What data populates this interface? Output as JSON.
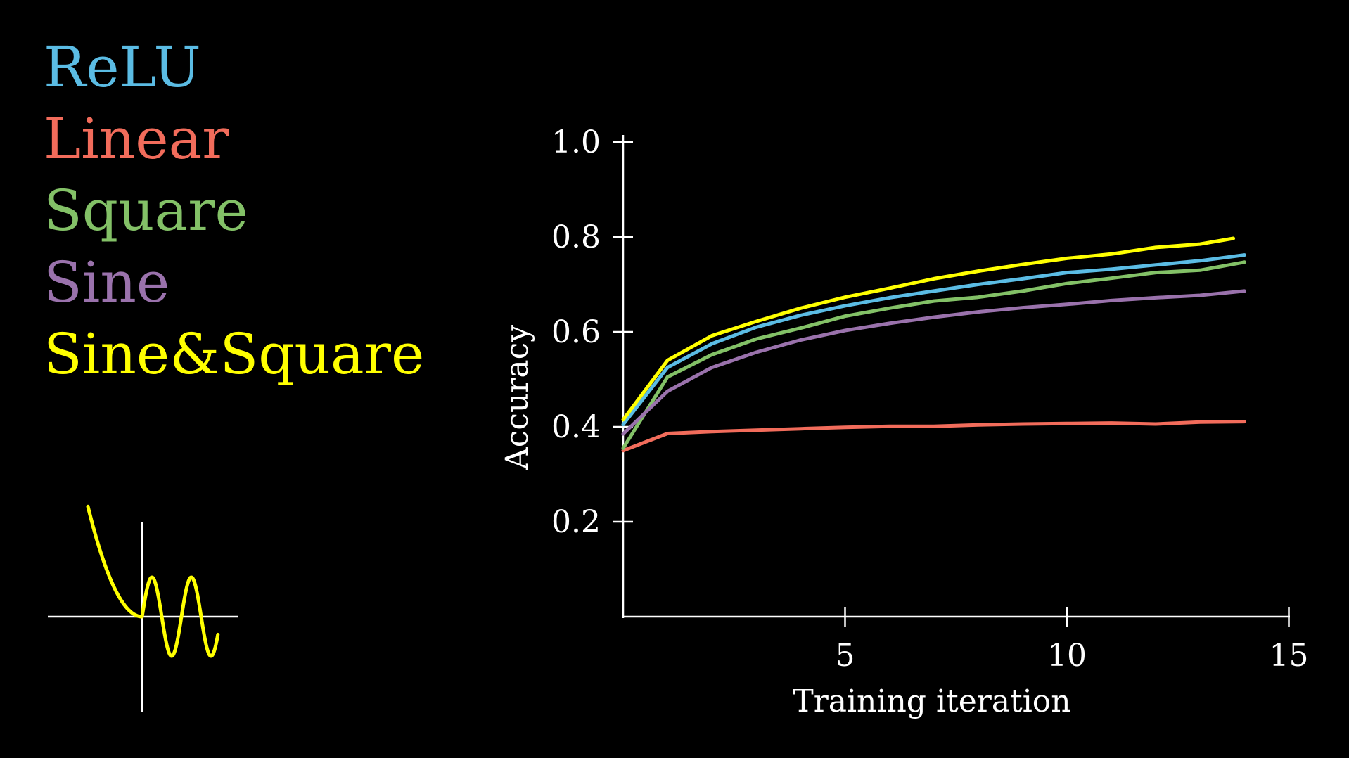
{
  "legend": {
    "items": [
      {
        "label": "ReLU",
        "color": "#5bbce4"
      },
      {
        "label": "Linear",
        "color": "#f26c5b"
      },
      {
        "label": "Square",
        "color": "#83c167"
      },
      {
        "label": "Sine",
        "color": "#9a72ac"
      },
      {
        "label": "Sine&Square",
        "color": "#ffff00"
      }
    ]
  },
  "activation_icon": {
    "name": "sine-square-activation-icon",
    "color": "#ffff00"
  },
  "chart_data": {
    "type": "line",
    "title": "",
    "xlabel": "Training iteration",
    "ylabel": "Accuracy",
    "xlim": [
      0,
      15
    ],
    "ylim": [
      0,
      1.0
    ],
    "xticks": [
      5,
      10,
      15
    ],
    "yticks": [
      0.2,
      0.4,
      0.6,
      0.8,
      1.0
    ],
    "xtick_labels": [
      "5",
      "10",
      "15"
    ],
    "ytick_labels": [
      "0.2",
      "0.4",
      "0.6",
      "0.8",
      "1.0"
    ],
    "grid": false,
    "legend_position": "top-left",
    "x": [
      0,
      1,
      2,
      3,
      4,
      5,
      6,
      7,
      8,
      9,
      10,
      11,
      12,
      13,
      14
    ],
    "series": [
      {
        "name": "ReLU",
        "color": "#5bbce4",
        "values": [
          0.405,
          0.525,
          0.575,
          0.61,
          0.635,
          0.655,
          0.672,
          0.686,
          0.7,
          0.712,
          0.725,
          0.732,
          0.741,
          0.75,
          0.762
        ]
      },
      {
        "name": "Linear",
        "color": "#f26c5b",
        "values": [
          0.35,
          0.386,
          0.39,
          0.393,
          0.396,
          0.399,
          0.401,
          0.401,
          0.404,
          0.406,
          0.407,
          0.408,
          0.406,
          0.41,
          0.411
        ]
      },
      {
        "name": "Square",
        "color": "#83c167",
        "values": [
          0.355,
          0.505,
          0.552,
          0.585,
          0.608,
          0.633,
          0.65,
          0.665,
          0.673,
          0.686,
          0.702,
          0.713,
          0.725,
          0.73,
          0.747
        ]
      },
      {
        "name": "Sine",
        "color": "#9a72ac",
        "values": [
          0.385,
          0.475,
          0.525,
          0.557,
          0.583,
          0.603,
          0.618,
          0.631,
          0.642,
          0.651,
          0.658,
          0.666,
          0.672,
          0.677,
          0.686
        ]
      },
      {
        "name": "Sine&Square",
        "color": "#ffff00",
        "x": [
          0,
          1,
          2,
          3,
          4,
          5,
          6,
          7,
          8,
          9,
          10,
          11,
          12,
          13,
          13.75
        ],
        "values": [
          0.415,
          0.54,
          0.592,
          0.622,
          0.65,
          0.673,
          0.692,
          0.712,
          0.728,
          0.742,
          0.755,
          0.764,
          0.778,
          0.785,
          0.797
        ]
      }
    ]
  }
}
